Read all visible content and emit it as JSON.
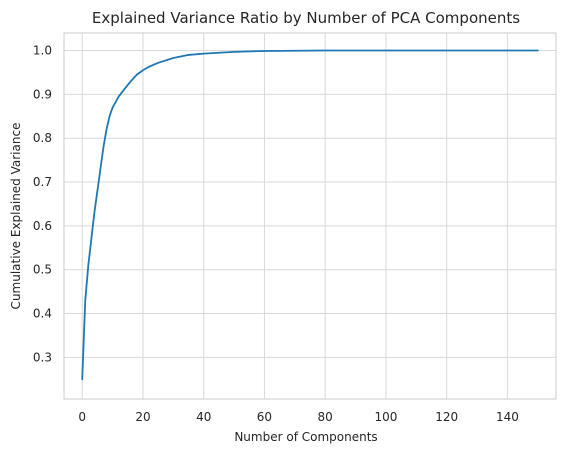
{
  "chart_data": {
    "type": "line",
    "title": "Explained Variance Ratio by Number of PCA Components",
    "xlabel": "Number of Components",
    "ylabel": "Cumulative Explained Variance",
    "xlim": [
      -6,
      156
    ],
    "ylim": [
      0.205,
      1.04
    ],
    "xticks": [
      0,
      20,
      40,
      60,
      80,
      100,
      120,
      140
    ],
    "yticks": [
      0.3,
      0.4,
      0.5,
      0.6,
      0.7,
      0.8,
      0.9,
      1.0
    ],
    "xtick_labels": [
      "0",
      "20",
      "40",
      "60",
      "80",
      "100",
      "120",
      "140"
    ],
    "ytick_labels": [
      "0.3",
      "0.4",
      "0.5",
      "0.6",
      "0.7",
      "0.8",
      "0.9",
      "1.0"
    ],
    "grid": true,
    "series": [
      {
        "color": "#1f77b4",
        "x": [
          0,
          1,
          2,
          3,
          4,
          5,
          6,
          7,
          8,
          9,
          10,
          12,
          14,
          16,
          18,
          20,
          22,
          25,
          30,
          35,
          40,
          50,
          60,
          80,
          100,
          120,
          150
        ],
        "y": [
          0.25,
          0.43,
          0.51,
          0.57,
          0.63,
          0.68,
          0.73,
          0.78,
          0.82,
          0.85,
          0.87,
          0.895,
          0.913,
          0.93,
          0.945,
          0.955,
          0.963,
          0.972,
          0.983,
          0.99,
          0.993,
          0.997,
          0.999,
          1.0,
          1.0,
          1.0,
          1.0
        ]
      }
    ]
  }
}
